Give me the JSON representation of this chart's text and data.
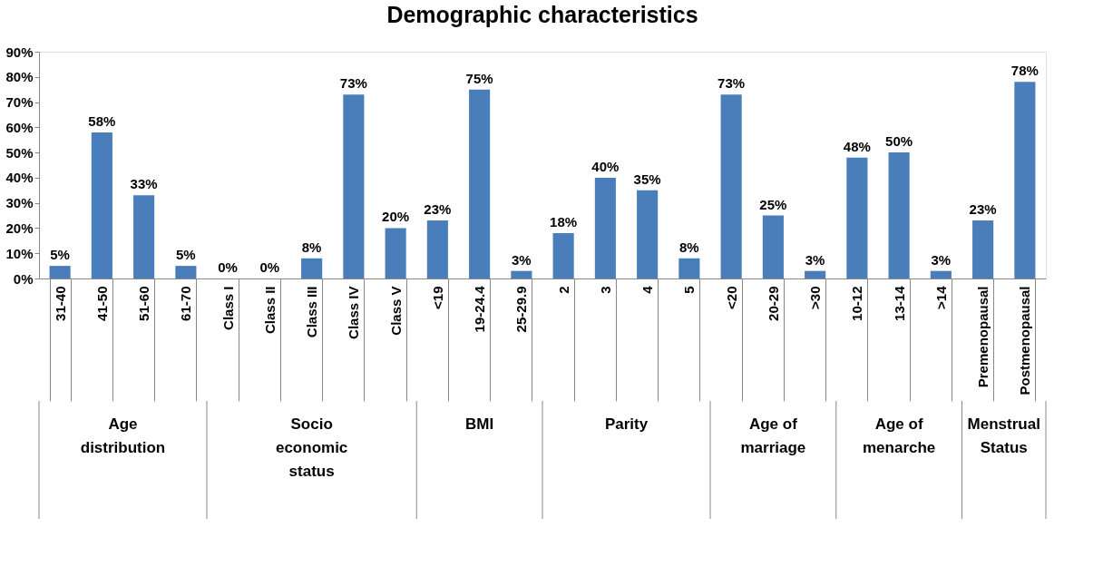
{
  "chart_data": {
    "type": "bar",
    "title": "Demographic characteristics",
    "categories": [
      "31-40",
      "41-50",
      "51-60",
      "61-70",
      "Class I",
      "Class II",
      "Class III",
      "Class IV",
      "Class V",
      "<19",
      "19-24.4",
      "25-29.9",
      "2",
      "3",
      "4",
      "5",
      "<20",
      "20-29",
      ">30",
      "10-12",
      "13-14",
      ">14",
      "Premenopausal",
      "Postmenopausal"
    ],
    "values": [
      5,
      58,
      33,
      5,
      0,
      0,
      8,
      73,
      20,
      23,
      75,
      3,
      18,
      40,
      35,
      8,
      73,
      25,
      3,
      48,
      50,
      3,
      23,
      78
    ],
    "value_labels": [
      "5%",
      "58%",
      "33%",
      "5%",
      "0%",
      "0%",
      "8%",
      "73%",
      "20%",
      "23%",
      "75%",
      "3%",
      "18%",
      "40%",
      "35%",
      "8%",
      "73%",
      "25%",
      "3%",
      "48%",
      "50%",
      "3%",
      "23%",
      "78%"
    ],
    "color": "#4a7ebb",
    "ylim": [
      0,
      90
    ],
    "yticks": [
      {
        "value": 0,
        "label": "0%"
      },
      {
        "value": 10,
        "label": "10%"
      },
      {
        "value": 20,
        "label": "20%"
      },
      {
        "value": 30,
        "label": "30%"
      },
      {
        "value": 40,
        "label": "40%"
      },
      {
        "value": 50,
        "label": "50%"
      },
      {
        "value": 60,
        "label": "60%"
      },
      {
        "value": 70,
        "label": "70%"
      },
      {
        "value": 80,
        "label": "80%"
      },
      {
        "value": 90,
        "label": "90%"
      }
    ],
    "grid": false,
    "annotations": [
      "Age\ndistribution",
      "Socio\neconomic\nstatus",
      "BMI",
      "Parity",
      "Age of\nmarriage",
      "Age of\nmenarche",
      "Menstrual\nStatus"
    ]
  }
}
